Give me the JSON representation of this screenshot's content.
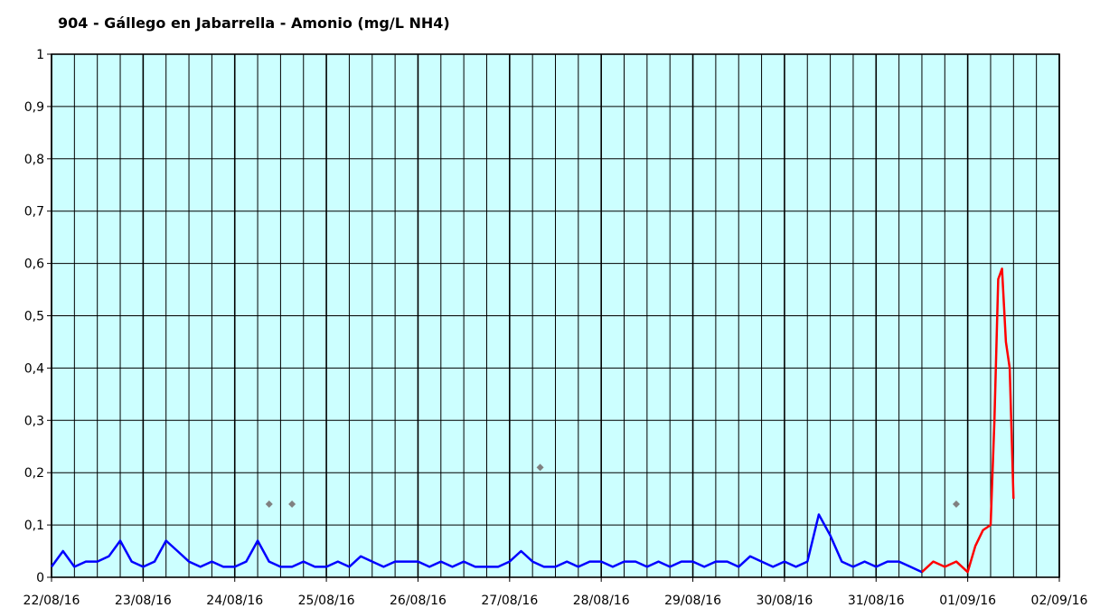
{
  "chart_data": {
    "type": "line",
    "title": "904 - Gállego en Jabarrella - Amonio (mg/L NH4)",
    "xlabel": "",
    "ylabel": "",
    "xlim": [
      "22/08/16",
      "02/09/16"
    ],
    "ylim": [
      0,
      1
    ],
    "x_tick_labels": [
      "22/08/16",
      "23/08/16",
      "24/08/16",
      "25/08/16",
      "26/08/16",
      "27/08/16",
      "28/08/16",
      "29/08/16",
      "30/08/16",
      "31/08/16",
      "01/09/16",
      "02/09/16"
    ],
    "y_tick_labels": [
      "0",
      "0,1",
      "0,2",
      "0,3",
      "0,4",
      "0,5",
      "0,6",
      "0,7",
      "0,8",
      "0,9",
      "1"
    ],
    "y_ticks": [
      0,
      0.1,
      0.2,
      0.3,
      0.4,
      0.5,
      0.6,
      0.7,
      0.8,
      0.9,
      1
    ],
    "grid": true,
    "plot_background": "#ccffff",
    "series": [
      {
        "color": "#0000ff",
        "x": [
          "22/08/16 00:00",
          "22/08/16 03:00",
          "22/08/16 06:00",
          "22/08/16 09:00",
          "22/08/16 12:00",
          "22/08/16 15:00",
          "22/08/16 18:00",
          "22/08/16 21:00",
          "23/08/16 00:00",
          "23/08/16 03:00",
          "23/08/16 06:00",
          "23/08/16 09:00",
          "23/08/16 12:00",
          "23/08/16 15:00",
          "23/08/16 18:00",
          "23/08/16 21:00",
          "24/08/16 00:00",
          "24/08/16 03:00",
          "24/08/16 06:00",
          "24/08/16 09:00",
          "24/08/16 12:00",
          "24/08/16 15:00",
          "24/08/16 18:00",
          "24/08/16 21:00",
          "25/08/16 00:00",
          "25/08/16 03:00",
          "25/08/16 06:00",
          "25/08/16 09:00",
          "25/08/16 12:00",
          "25/08/16 15:00",
          "25/08/16 18:00",
          "25/08/16 21:00",
          "26/08/16 00:00",
          "26/08/16 03:00",
          "26/08/16 06:00",
          "26/08/16 09:00",
          "26/08/16 12:00",
          "26/08/16 15:00",
          "26/08/16 18:00",
          "26/08/16 21:00",
          "27/08/16 00:00",
          "27/08/16 03:00",
          "27/08/16 06:00",
          "27/08/16 09:00",
          "27/08/16 12:00",
          "27/08/16 15:00",
          "27/08/16 18:00",
          "27/08/16 21:00",
          "28/08/16 00:00",
          "28/08/16 03:00",
          "28/08/16 06:00",
          "28/08/16 09:00",
          "28/08/16 12:00",
          "28/08/16 15:00",
          "28/08/16 18:00",
          "28/08/16 21:00",
          "29/08/16 00:00",
          "29/08/16 03:00",
          "29/08/16 06:00",
          "29/08/16 09:00",
          "29/08/16 12:00",
          "29/08/16 15:00",
          "29/08/16 18:00",
          "29/08/16 21:00",
          "30/08/16 00:00",
          "30/08/16 03:00",
          "30/08/16 06:00",
          "30/08/16 09:00",
          "30/08/16 12:00",
          "30/08/16 15:00",
          "30/08/16 18:00",
          "30/08/16 21:00",
          "31/08/16 00:00",
          "31/08/16 03:00",
          "31/08/16 06:00",
          "31/08/16 09:00",
          "31/08/16 12:00"
        ],
        "y": [
          0.02,
          0.05,
          0.02,
          0.03,
          0.03,
          0.04,
          0.07,
          0.03,
          0.02,
          0.03,
          0.07,
          0.05,
          0.03,
          0.02,
          0.03,
          0.02,
          0.02,
          0.03,
          0.07,
          0.03,
          0.02,
          0.02,
          0.03,
          0.02,
          0.02,
          0.03,
          0.02,
          0.04,
          0.03,
          0.02,
          0.03,
          0.03,
          0.03,
          0.02,
          0.03,
          0.02,
          0.03,
          0.02,
          0.02,
          0.02,
          0.03,
          0.05,
          0.03,
          0.02,
          0.02,
          0.03,
          0.02,
          0.03,
          0.03,
          0.02,
          0.03,
          0.03,
          0.02,
          0.03,
          0.02,
          0.03,
          0.03,
          0.02,
          0.03,
          0.03,
          0.02,
          0.04,
          0.03,
          0.02,
          0.03,
          0.02,
          0.03,
          0.12,
          0.08,
          0.03,
          0.02,
          0.03,
          0.02,
          0.03,
          0.03,
          0.02,
          0.01
        ]
      },
      {
        "color": "#ff0000",
        "x": [
          "31/08/16 12:00",
          "31/08/16 15:00",
          "31/08/16 18:00",
          "31/08/16 21:00",
          "01/09/16 00:00",
          "01/09/16 02:00",
          "01/09/16 04:00",
          "01/09/16 06:00",
          "01/09/16 07:00",
          "01/09/16 08:00",
          "01/09/16 09:00",
          "01/09/16 10:00",
          "01/09/16 11:00",
          "01/09/16 12:00"
        ],
        "y": [
          0.01,
          0.03,
          0.02,
          0.03,
          0.01,
          0.06,
          0.09,
          0.1,
          0.3,
          0.57,
          0.59,
          0.45,
          0.4,
          0.15
        ]
      },
      {
        "type": "scatter",
        "color": "#808080",
        "x": [
          "24/08/16 09:00",
          "24/08/16 15:00",
          "27/08/16 08:00",
          "31/08/16 21:00"
        ],
        "y": [
          0.14,
          0.14,
          0.21,
          0.14
        ]
      }
    ]
  }
}
